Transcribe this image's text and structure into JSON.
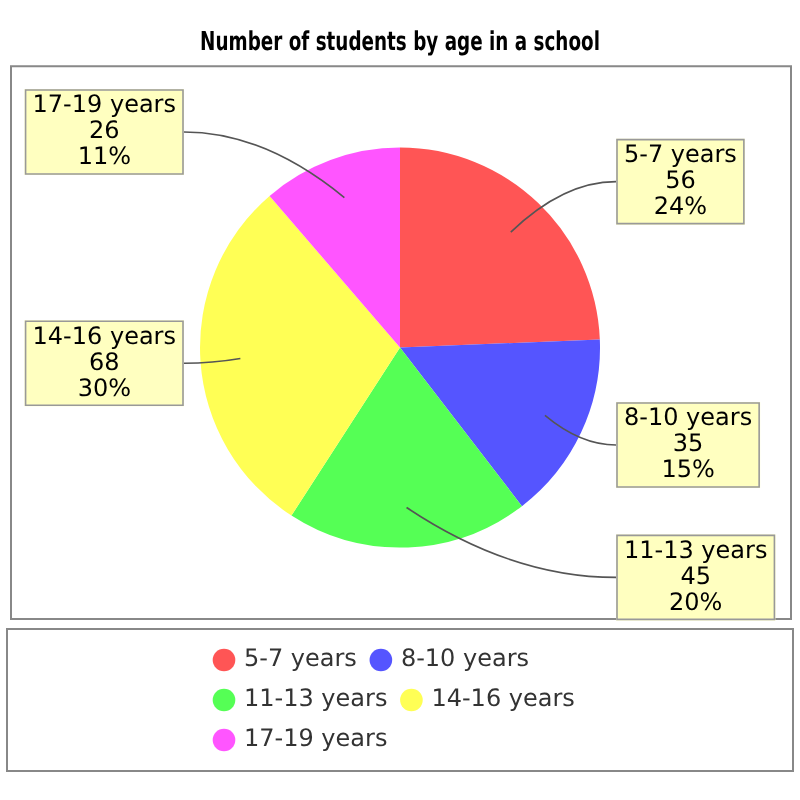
{
  "chart_data": {
    "type": "pie",
    "title": "Number of students by age in a school",
    "categories": [
      "5-7 years",
      "8-10 years",
      "11-13 years",
      "14-16 years",
      "17-19 years"
    ],
    "values": [
      56,
      35,
      45,
      68,
      26
    ],
    "colors": [
      "#ff5555",
      "#5555ff",
      "#55ff55",
      "#ffff55",
      "#ff55ff"
    ],
    "value_labels": [
      "56\n24%",
      "35\n15%",
      "45\n20%",
      "68\n30%",
      "26\n11%"
    ],
    "legend": "bottom"
  }
}
